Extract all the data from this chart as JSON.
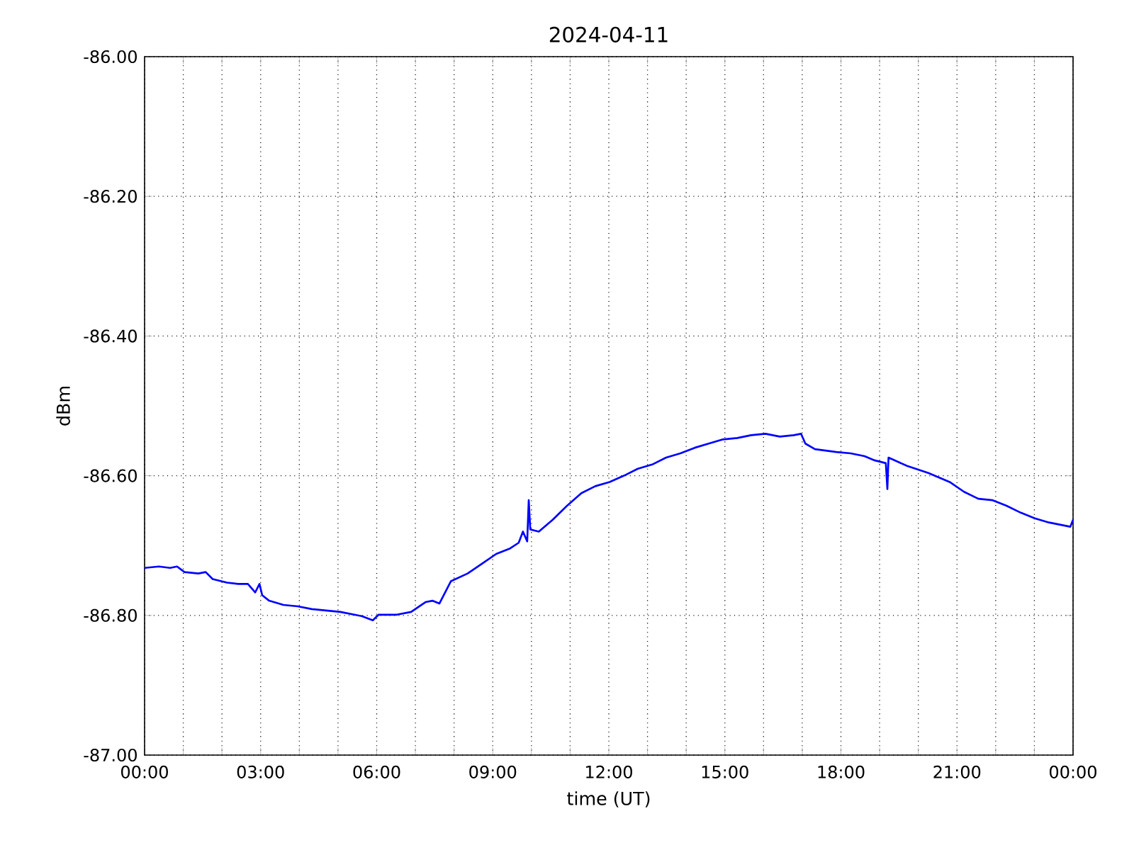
{
  "chart_data": {
    "type": "line",
    "title": "2024-04-11",
    "xlabel": "time (UT)",
    "ylabel": "dBm",
    "xlim": [
      0,
      24
    ],
    "xticks": [
      {
        "value": 0,
        "label": "00:00"
      },
      {
        "value": 1,
        "label": null
      },
      {
        "value": 2,
        "label": null
      },
      {
        "value": 3,
        "label": "03:00"
      },
      {
        "value": 4,
        "label": null
      },
      {
        "value": 5,
        "label": null
      },
      {
        "value": 6,
        "label": "06:00"
      },
      {
        "value": 7,
        "label": null
      },
      {
        "value": 8,
        "label": null
      },
      {
        "value": 9,
        "label": "09:00"
      },
      {
        "value": 10,
        "label": null
      },
      {
        "value": 11,
        "label": null
      },
      {
        "value": 12,
        "label": "12:00"
      },
      {
        "value": 13,
        "label": null
      },
      {
        "value": 14,
        "label": null
      },
      {
        "value": 15,
        "label": "15:00"
      },
      {
        "value": 16,
        "label": null
      },
      {
        "value": 17,
        "label": null
      },
      {
        "value": 18,
        "label": "18:00"
      },
      {
        "value": 19,
        "label": null
      },
      {
        "value": 20,
        "label": null
      },
      {
        "value": 21,
        "label": "21:00"
      },
      {
        "value": 22,
        "label": null
      },
      {
        "value": 23,
        "label": null
      },
      {
        "value": 24,
        "label": "00:00"
      }
    ],
    "ylim": [
      -87,
      -86
    ],
    "yticks": [
      {
        "value": -87,
        "label": "-87.00"
      },
      {
        "value": -86.8,
        "label": "-86.80"
      },
      {
        "value": -86.6,
        "label": "-86.60"
      },
      {
        "value": -86.4,
        "label": "-86.40"
      },
      {
        "value": -86.2,
        "label": "-86.20"
      },
      {
        "value": -86,
        "label": "-86.00"
      }
    ],
    "grid": true,
    "line_style": "dotted",
    "series": [
      {
        "color": "#0000ff",
        "line_style": "solid",
        "x": [
          0,
          0.37,
          0.66,
          0.84,
          1.03,
          1.39,
          1.58,
          1.76,
          2.13,
          2.42,
          2.67,
          2.86,
          2.97,
          3.04,
          3.22,
          3.59,
          3.96,
          4.32,
          4.69,
          5.06,
          5.61,
          5.9,
          6.05,
          6.52,
          6.89,
          7.26,
          7.44,
          7.62,
          7.92,
          8.35,
          8.72,
          9.09,
          9.45,
          9.67,
          9.78,
          9.89,
          9.93,
          9.97,
          10.19,
          10.55,
          10.92,
          11.29,
          11.65,
          12.02,
          12.39,
          12.75,
          13.12,
          13.48,
          13.85,
          14.22,
          14.58,
          14.95,
          15.32,
          15.68,
          16.05,
          16.42,
          16.78,
          16.97,
          17.08,
          17.33,
          17.88,
          18.25,
          18.61,
          18.87,
          19.16,
          19.2,
          19.23,
          19.71,
          20.26,
          20.81,
          21.18,
          21.55,
          21.91,
          22.28,
          22.65,
          23.01,
          23.38,
          23.93,
          24.0
        ],
        "values": [
          -86.732,
          -86.73,
          -86.732,
          -86.73,
          -86.738,
          -86.74,
          -86.738,
          -86.748,
          -86.753,
          -86.755,
          -86.755,
          -86.767,
          -86.755,
          -86.771,
          -86.779,
          -86.785,
          -86.787,
          -86.791,
          -86.793,
          -86.795,
          -86.801,
          -86.807,
          -86.799,
          -86.799,
          -86.795,
          -86.781,
          -86.779,
          -86.783,
          -86.751,
          -86.74,
          -86.726,
          -86.712,
          -86.704,
          -86.696,
          -86.68,
          -86.694,
          -86.635,
          -86.677,
          -86.68,
          -86.663,
          -86.643,
          -86.625,
          -86.615,
          -86.609,
          -86.6,
          -86.59,
          -86.584,
          -86.574,
          -86.568,
          -86.56,
          -86.554,
          -86.548,
          -86.546,
          -86.542,
          -86.54,
          -86.544,
          -86.542,
          -86.54,
          -86.554,
          -86.562,
          -86.566,
          -86.568,
          -86.572,
          -86.578,
          -86.582,
          -86.619,
          -86.574,
          -86.586,
          -86.596,
          -86.609,
          -86.623,
          -86.633,
          -86.635,
          -86.643,
          -86.653,
          -86.661,
          -86.667,
          -86.673,
          -86.663
        ]
      }
    ]
  }
}
